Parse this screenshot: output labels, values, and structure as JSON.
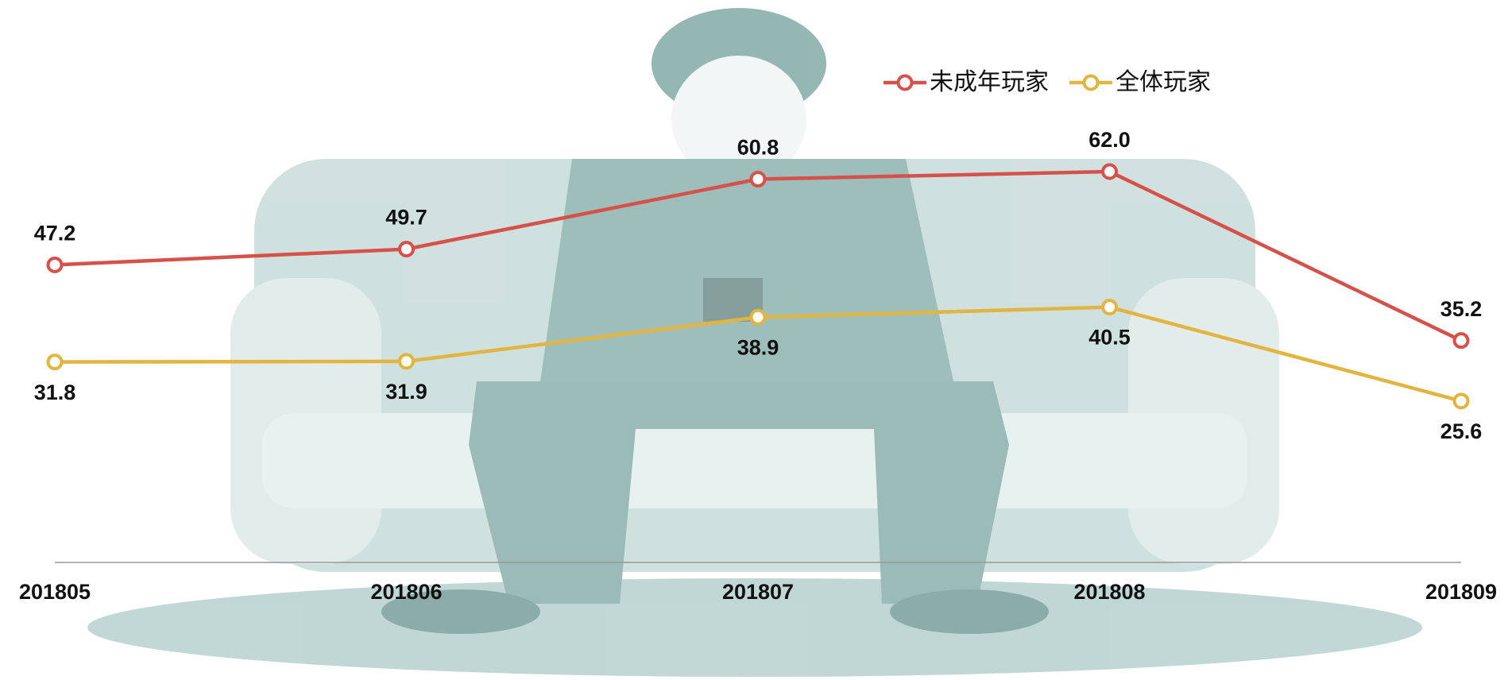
{
  "chart_data": {
    "type": "line",
    "categories": [
      "201805",
      "201806",
      "201807",
      "201808",
      "201809"
    ],
    "series": [
      {
        "name": "未成年玩家",
        "color": "#d6514a",
        "values": [
          47.2,
          49.7,
          60.8,
          62.0,
          35.2
        ],
        "value_labels": [
          "47.2",
          "49.7",
          "60.8",
          "62.0",
          "35.2"
        ]
      },
      {
        "name": "全体玩家",
        "color": "#e2b440",
        "values": [
          31.8,
          31.9,
          38.9,
          40.5,
          25.6
        ],
        "value_labels": [
          "31.8",
          "31.9",
          "38.9",
          "40.5",
          "25.6"
        ]
      }
    ]
  }
}
